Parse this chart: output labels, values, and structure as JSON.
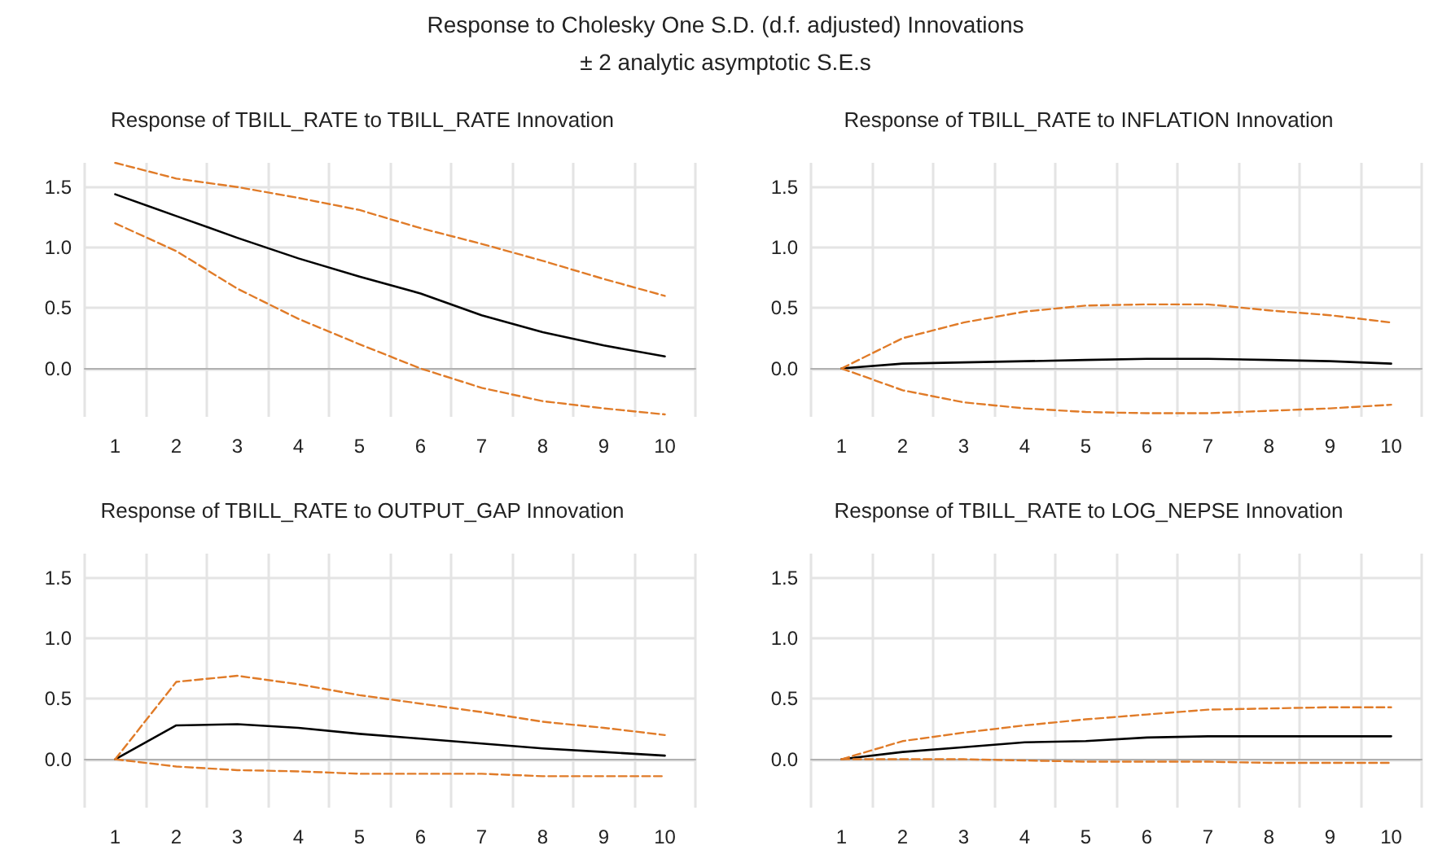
{
  "chart_data": [
    {
      "type": "other",
      "title": "Response to Cholesky One S.D. (d.f. adjusted) Innovations",
      "subtitle": "± 2 analytic asymptotic S.E.s"
    },
    {
      "type": "line",
      "title": "Response of TBILL_RATE to TBILL_RATE Innovation",
      "categories": [
        "1",
        "2",
        "3",
        "4",
        "5",
        "6",
        "7",
        "8",
        "9",
        "10"
      ],
      "ylim": [
        -0.4,
        1.7
      ],
      "yticks": [
        {
          "value": 0,
          "label": "0.0"
        },
        {
          "value": 0.5,
          "label": "0.5"
        },
        {
          "value": 1,
          "label": "1.0"
        },
        {
          "value": 1.5,
          "label": "1.5"
        }
      ],
      "grid": true,
      "marker": "none",
      "series": [
        {
          "color": "#000000",
          "line_style": "solid",
          "values": [
            1.44,
            1.26,
            1.08,
            0.91,
            0.76,
            0.62,
            0.44,
            0.3,
            0.19,
            0.1
          ]
        },
        {
          "color": "#e07b28",
          "line_style": "dashed",
          "values": [
            1.7,
            1.57,
            1.5,
            1.41,
            1.31,
            1.16,
            1.03,
            0.89,
            0.74,
            0.6
          ]
        },
        {
          "color": "#e07b28",
          "line_style": "dashed",
          "values": [
            1.2,
            0.97,
            0.66,
            0.41,
            0.2,
            0.0,
            -0.16,
            -0.27,
            -0.33,
            -0.38
          ]
        }
      ]
    },
    {
      "type": "line",
      "title": "Response of TBILL_RATE to INFLATION Innovation",
      "categories": [
        "1",
        "2",
        "3",
        "4",
        "5",
        "6",
        "7",
        "8",
        "9",
        "10"
      ],
      "ylim": [
        -0.4,
        1.7
      ],
      "yticks": [
        {
          "value": 0,
          "label": "0.0"
        },
        {
          "value": 0.5,
          "label": "0.5"
        },
        {
          "value": 1,
          "label": "1.0"
        },
        {
          "value": 1.5,
          "label": "1.5"
        }
      ],
      "grid": true,
      "marker": "none",
      "series": [
        {
          "color": "#000000",
          "line_style": "solid",
          "values": [
            0,
            0.04,
            0.05,
            0.06,
            0.07,
            0.08,
            0.08,
            0.07,
            0.06,
            0.04
          ]
        },
        {
          "color": "#e07b28",
          "line_style": "dashed",
          "values": [
            0,
            0.25,
            0.38,
            0.47,
            0.52,
            0.53,
            0.53,
            0.48,
            0.44,
            0.38
          ]
        },
        {
          "color": "#e07b28",
          "line_style": "dashed",
          "values": [
            0,
            -0.18,
            -0.28,
            -0.33,
            -0.36,
            -0.37,
            -0.37,
            -0.35,
            -0.33,
            -0.3
          ]
        }
      ]
    },
    {
      "type": "line",
      "title": "Response of TBILL_RATE to OUTPUT_GAP Innovation",
      "categories": [
        "1",
        "2",
        "3",
        "4",
        "5",
        "6",
        "7",
        "8",
        "9",
        "10"
      ],
      "ylim": [
        -0.4,
        1.7
      ],
      "yticks": [
        {
          "value": 0,
          "label": "0.0"
        },
        {
          "value": 0.5,
          "label": "0.5"
        },
        {
          "value": 1,
          "label": "1.0"
        },
        {
          "value": 1.5,
          "label": "1.5"
        }
      ],
      "grid": true,
      "marker": "none",
      "series": [
        {
          "color": "#000000",
          "line_style": "solid",
          "values": [
            0,
            0.28,
            0.29,
            0.26,
            0.21,
            0.17,
            0.13,
            0.09,
            0.06,
            0.03
          ]
        },
        {
          "color": "#e07b28",
          "line_style": "dashed",
          "values": [
            0,
            0.64,
            0.69,
            0.62,
            0.53,
            0.46,
            0.39,
            0.31,
            0.26,
            0.2
          ]
        },
        {
          "color": "#e07b28",
          "line_style": "dashed",
          "values": [
            0,
            -0.06,
            -0.09,
            -0.1,
            -0.12,
            -0.12,
            -0.12,
            -0.14,
            -0.14,
            -0.14
          ]
        }
      ]
    },
    {
      "type": "line",
      "title": "Response of TBILL_RATE to LOG_NEPSE Innovation",
      "categories": [
        "1",
        "2",
        "3",
        "4",
        "5",
        "6",
        "7",
        "8",
        "9",
        "10"
      ],
      "ylim": [
        -0.4,
        1.7
      ],
      "yticks": [
        {
          "value": 0,
          "label": "0.0"
        },
        {
          "value": 0.5,
          "label": "0.5"
        },
        {
          "value": 1,
          "label": "1.0"
        },
        {
          "value": 1.5,
          "label": "1.5"
        }
      ],
      "grid": true,
      "marker": "none",
      "series": [
        {
          "color": "#000000",
          "line_style": "solid",
          "values": [
            0,
            0.06,
            0.1,
            0.14,
            0.15,
            0.18,
            0.19,
            0.19,
            0.19,
            0.19
          ]
        },
        {
          "color": "#e07b28",
          "line_style": "dashed",
          "values": [
            0,
            0.15,
            0.22,
            0.28,
            0.33,
            0.37,
            0.41,
            0.42,
            0.43,
            0.43
          ]
        },
        {
          "color": "#e07b28",
          "line_style": "dashed",
          "values": [
            0,
            0,
            0,
            -0.01,
            -0.02,
            -0.02,
            -0.02,
            -0.03,
            -0.03,
            -0.03
          ]
        }
      ]
    }
  ]
}
